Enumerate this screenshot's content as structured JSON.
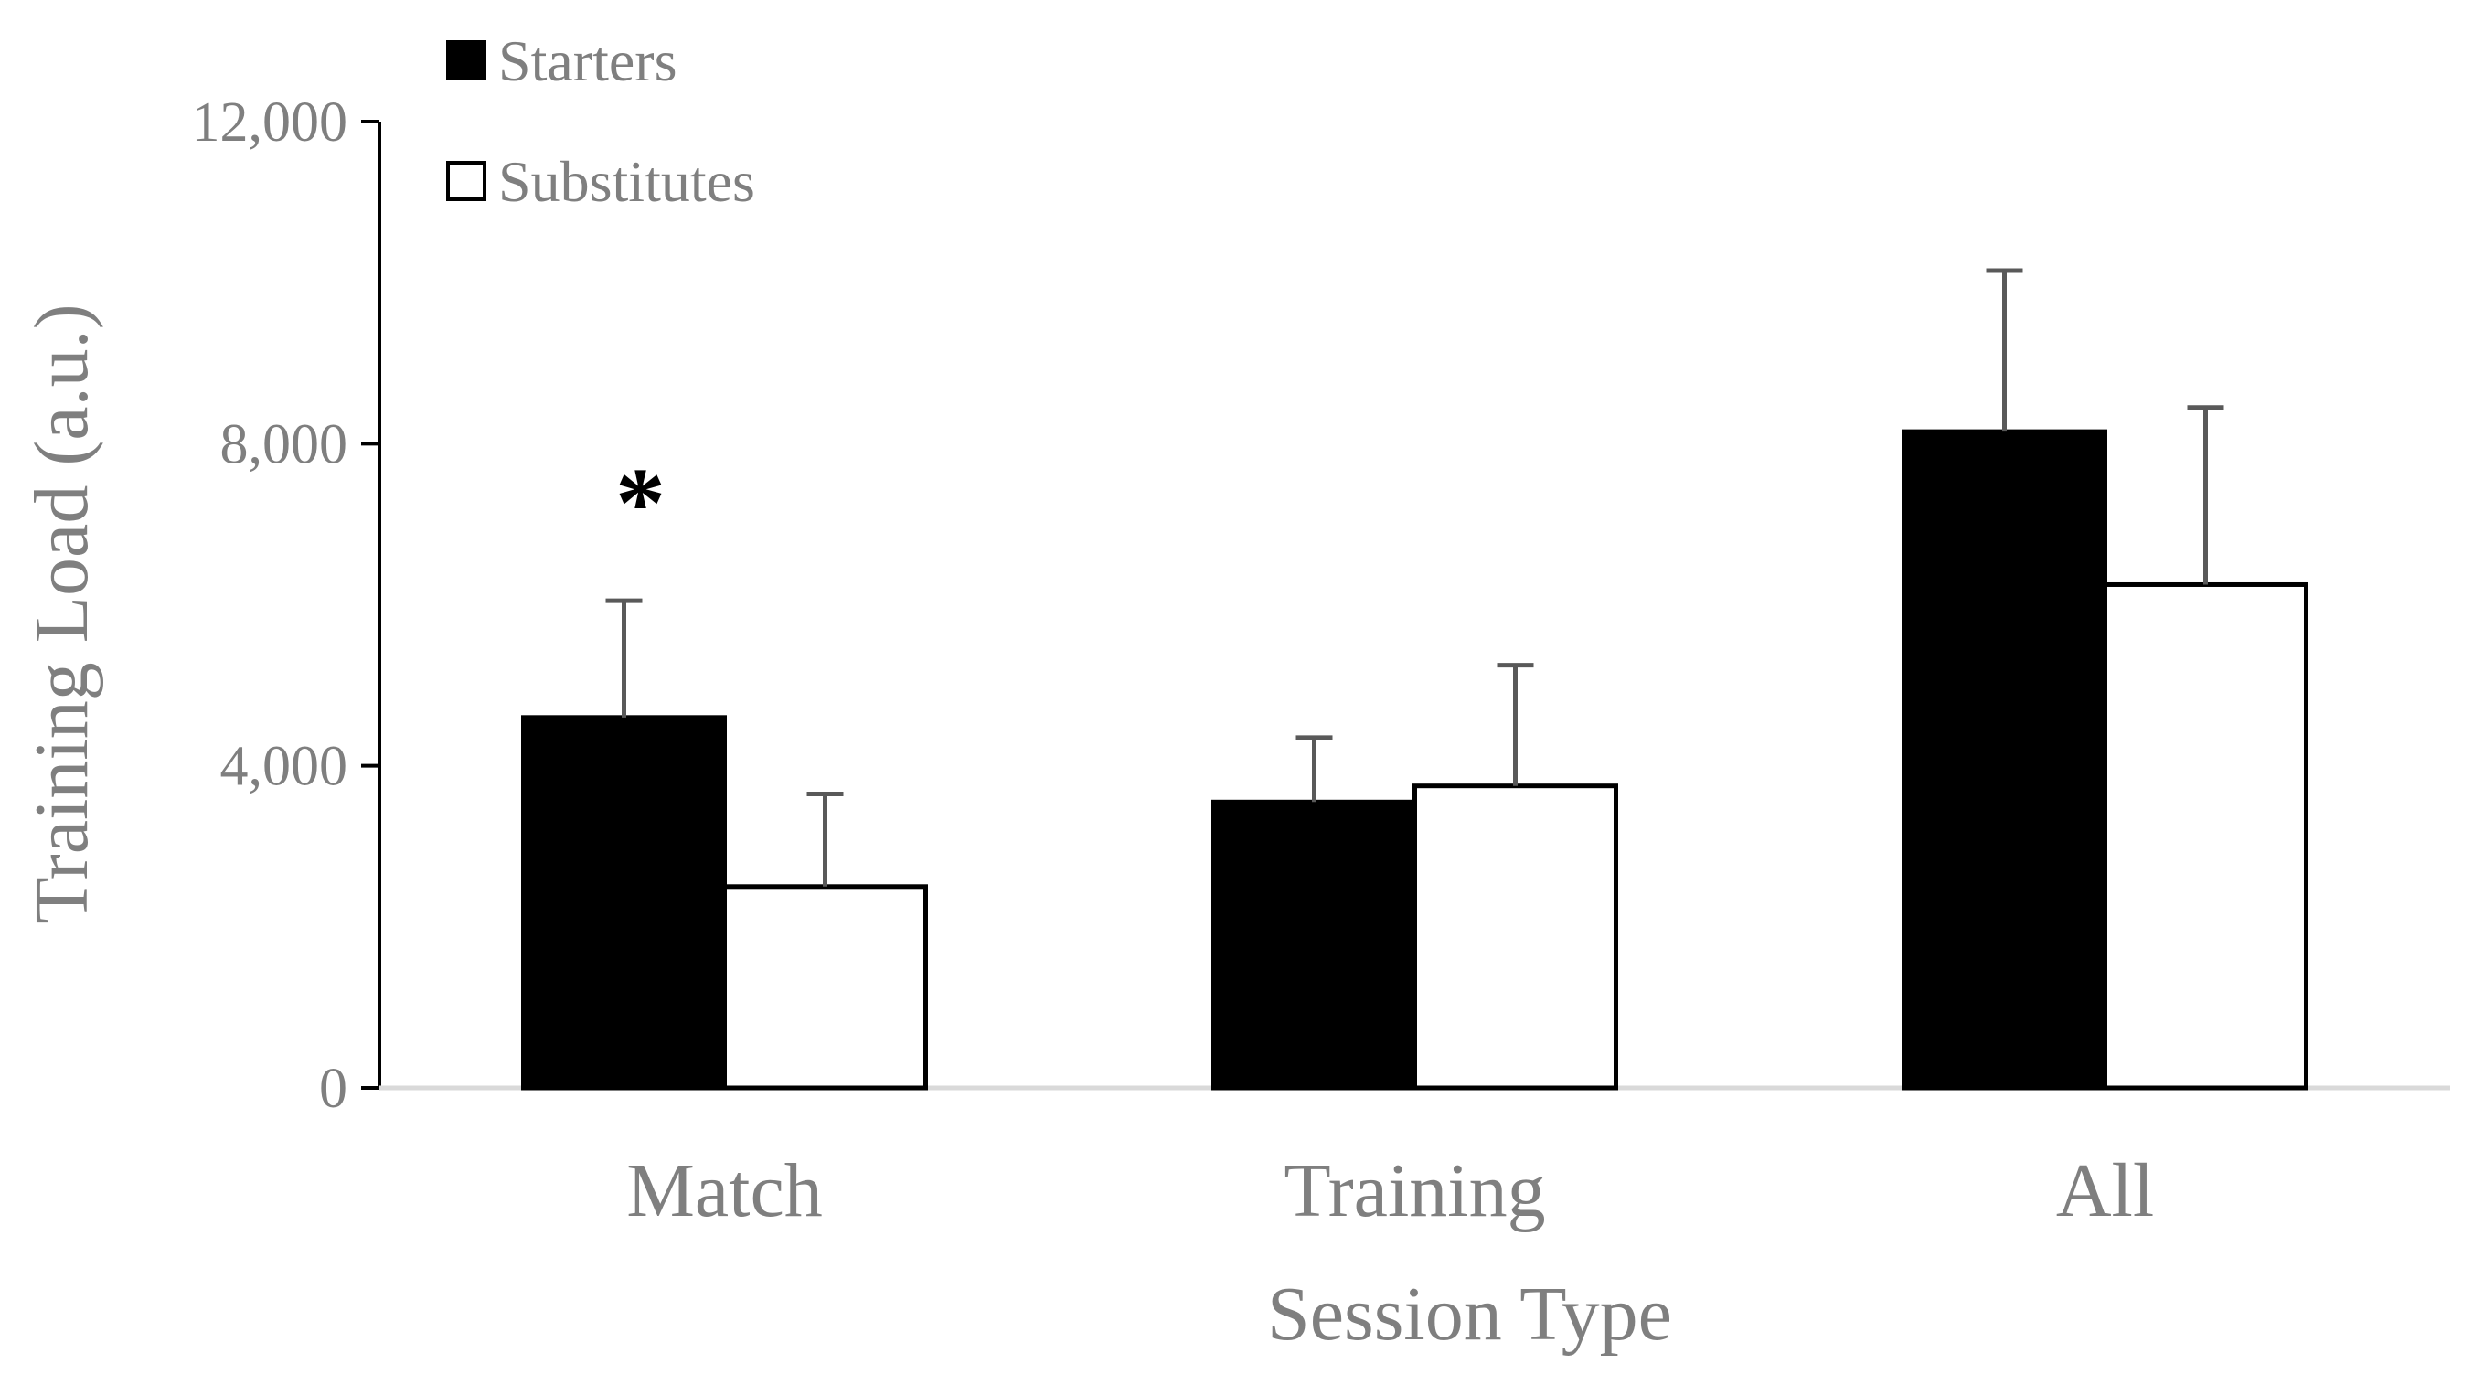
{
  "chart_data": {
    "type": "bar",
    "title": "",
    "xlabel": "Session Type",
    "ylabel": "Training Load (a.u.)",
    "categories": [
      "Match",
      "Training",
      "All"
    ],
    "series": [
      {
        "name": "Starters",
        "values": [
          4600,
          3550,
          8150
        ],
        "errors": [
          1450,
          800,
          2000
        ],
        "color": "#000000"
      },
      {
        "name": "Substitutes",
        "values": [
          2500,
          3750,
          6250
        ],
        "errors": [
          1150,
          1500,
          2200
        ],
        "color": "#ffffff"
      }
    ],
    "ylim": [
      0,
      12000
    ],
    "yticks": [
      0,
      4000,
      8000,
      12000
    ],
    "ytick_labels": [
      "0",
      "4,000",
      "8,000",
      "12,000"
    ],
    "grid": false,
    "legend_position": "top-left",
    "annotations": [
      {
        "text": "*",
        "category": "Match",
        "series": "Starters"
      }
    ]
  }
}
